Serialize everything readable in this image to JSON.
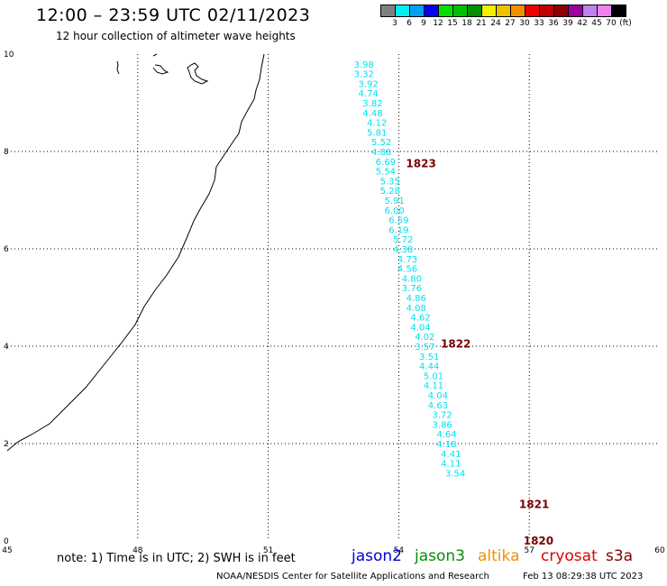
{
  "header": {
    "title": "12:00 – 23:59 UTC 02/11/2023",
    "subtitle": "12 hour collection of altimeter wave heights"
  },
  "legend": {
    "colors": [
      "#808080",
      "#00f0f0",
      "#00a0f0",
      "#0000f0",
      "#00e000",
      "#00c000",
      "#009000",
      "#f0f000",
      "#f0c000",
      "#f09000",
      "#f00000",
      "#c00000",
      "#900000",
      "#a000a0",
      "#c080f0",
      "#f080f0",
      "#000000"
    ],
    "labels": [
      "3",
      "6",
      "9",
      "12",
      "15",
      "18",
      "21",
      "24",
      "27",
      "30",
      "33",
      "36",
      "39",
      "42",
      "45",
      "70",
      "(ft)"
    ]
  },
  "chart_data": {
    "type": "scatter",
    "x_ticks": [
      "45",
      "48",
      "51",
      "54",
      "57",
      "60"
    ],
    "y_ticks": [
      "0",
      "2",
      "4",
      "6",
      "8",
      "10"
    ],
    "xlim": [
      45,
      60
    ],
    "ylim": [
      0,
      10
    ],
    "grid": true,
    "value_color": "#00e0f0",
    "label_color": "#7a0000",
    "points": [
      {
        "lon": 53.2,
        "lat": 9.8,
        "v": "3.98"
      },
      {
        "lon": 53.2,
        "lat": 9.6,
        "v": "3.32"
      },
      {
        "lon": 53.3,
        "lat": 9.4,
        "v": "3.92"
      },
      {
        "lon": 53.3,
        "lat": 9.2,
        "v": "4.74"
      },
      {
        "lon": 53.4,
        "lat": 9.0,
        "v": "3.82"
      },
      {
        "lon": 53.4,
        "lat": 8.8,
        "v": "4.48"
      },
      {
        "lon": 53.5,
        "lat": 8.6,
        "v": "4.12"
      },
      {
        "lon": 53.5,
        "lat": 8.4,
        "v": "5.81"
      },
      {
        "lon": 53.6,
        "lat": 8.2,
        "v": "5.52"
      },
      {
        "lon": 53.6,
        "lat": 8.0,
        "v": "4.88"
      },
      {
        "lon": 53.7,
        "lat": 7.8,
        "v": "6.69"
      },
      {
        "lon": 53.7,
        "lat": 7.6,
        "v": "5.54"
      },
      {
        "lon": 53.8,
        "lat": 7.4,
        "v": "5.35"
      },
      {
        "lon": 53.8,
        "lat": 7.2,
        "v": "5.28"
      },
      {
        "lon": 53.9,
        "lat": 7.0,
        "v": "5.91"
      },
      {
        "lon": 53.9,
        "lat": 6.8,
        "v": "6.00"
      },
      {
        "lon": 54.0,
        "lat": 6.6,
        "v": "6.59"
      },
      {
        "lon": 54.0,
        "lat": 6.4,
        "v": "6.19"
      },
      {
        "lon": 54.1,
        "lat": 6.2,
        "v": "5.72"
      },
      {
        "lon": 54.1,
        "lat": 6.0,
        "v": "4.38"
      },
      {
        "lon": 54.2,
        "lat": 5.8,
        "v": "4.73"
      },
      {
        "lon": 54.2,
        "lat": 5.6,
        "v": "4.56"
      },
      {
        "lon": 54.3,
        "lat": 5.4,
        "v": "4.80"
      },
      {
        "lon": 54.3,
        "lat": 5.2,
        "v": "3.76"
      },
      {
        "lon": 54.4,
        "lat": 5.0,
        "v": "4.86"
      },
      {
        "lon": 54.4,
        "lat": 4.8,
        "v": "4.08"
      },
      {
        "lon": 54.5,
        "lat": 4.6,
        "v": "4.62"
      },
      {
        "lon": 54.5,
        "lat": 4.4,
        "v": "4.04"
      },
      {
        "lon": 54.6,
        "lat": 4.2,
        "v": "4.02"
      },
      {
        "lon": 54.6,
        "lat": 4.0,
        "v": "3.57"
      },
      {
        "lon": 54.7,
        "lat": 3.8,
        "v": "3.51"
      },
      {
        "lon": 54.7,
        "lat": 3.6,
        "v": "4.44"
      },
      {
        "lon": 54.8,
        "lat": 3.4,
        "v": "5.01"
      },
      {
        "lon": 54.8,
        "lat": 3.2,
        "v": "4.11"
      },
      {
        "lon": 54.9,
        "lat": 3.0,
        "v": "4.04"
      },
      {
        "lon": 54.9,
        "lat": 2.8,
        "v": "4.63"
      },
      {
        "lon": 55.0,
        "lat": 2.6,
        "v": "3.72"
      },
      {
        "lon": 55.0,
        "lat": 2.4,
        "v": "3.86"
      },
      {
        "lon": 55.1,
        "lat": 2.2,
        "v": "4.64"
      },
      {
        "lon": 55.1,
        "lat": 2.0,
        "v": "4.18"
      },
      {
        "lon": 55.2,
        "lat": 1.8,
        "v": "4.41"
      },
      {
        "lon": 55.2,
        "lat": 1.6,
        "v": "4.11"
      },
      {
        "lon": 55.3,
        "lat": 1.4,
        "v": "3.54"
      }
    ],
    "time_labels": [
      {
        "lon": 54.0,
        "lat": 7.75,
        "t": "1823"
      },
      {
        "lon": 54.8,
        "lat": 4.05,
        "t": "1822"
      },
      {
        "lon": 56.6,
        "lat": 0.75,
        "t": "1821"
      },
      {
        "lon": 56.7,
        "lat": 0.0,
        "t": "1820"
      }
    ]
  },
  "footer": {
    "note": "note: 1) Time is in UTC; 2) SWH is in feet",
    "satellites": [
      {
        "name": "jason2",
        "color": "#0000d0"
      },
      {
        "name": "jason3",
        "color": "#009000"
      },
      {
        "name": "altika",
        "color": "#f09000"
      },
      {
        "name": "cryosat",
        "color": "#e00000"
      },
      {
        "name": "s3a",
        "color": "#800000"
      }
    ],
    "credit": "NOAA/NESDIS Center for Satellite Applications and Research",
    "timestamp": "Feb 13 08:29:38 UTC 2023"
  }
}
